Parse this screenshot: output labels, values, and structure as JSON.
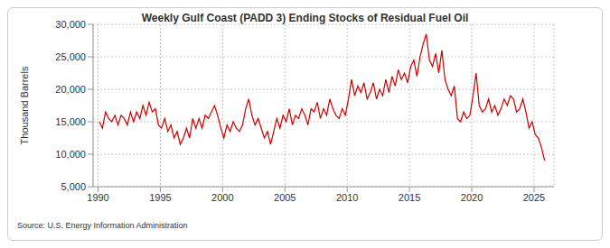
{
  "chart_data": {
    "type": "line",
    "title": "Weekly Gulf Coast (PADD 3) Ending Stocks of Residual Fuel Oil",
    "y_label": "Thousand Barrels",
    "source": "Source: U.S. Energy Information Administration",
    "color": "#cc0000",
    "grid": true,
    "xlim": [
      1989.6,
      2026.6
    ],
    "xticks": [
      1990,
      1995,
      2000,
      2005,
      2010,
      2015,
      2020,
      2025
    ],
    "ylim": [
      5000,
      30000
    ],
    "yticks": [
      {
        "value": 5000,
        "label": "5,000"
      },
      {
        "value": 10000,
        "label": "10,000"
      },
      {
        "value": 15000,
        "label": "15,000"
      },
      {
        "value": 20000,
        "label": "20,000"
      },
      {
        "value": 25000,
        "label": "25,000"
      },
      {
        "value": 30000,
        "label": "30,000"
      }
    ],
    "x": [
      1990.1,
      1990.35,
      1990.6,
      1990.85,
      1991.1,
      1991.35,
      1991.6,
      1991.85,
      1992.1,
      1992.35,
      1992.6,
      1992.85,
      1993.1,
      1993.35,
      1993.6,
      1993.85,
      1994.1,
      1994.35,
      1994.6,
      1994.85,
      1995.1,
      1995.35,
      1995.6,
      1995.85,
      1996.1,
      1996.35,
      1996.6,
      1996.85,
      1997.1,
      1997.35,
      1997.6,
      1997.85,
      1998.1,
      1998.35,
      1998.6,
      1998.85,
      1999.1,
      1999.35,
      1999.6,
      1999.85,
      2000.1,
      2000.35,
      2000.6,
      2000.85,
      2001.1,
      2001.35,
      2001.6,
      2001.85,
      2002.1,
      2002.35,
      2002.6,
      2002.85,
      2003.1,
      2003.35,
      2003.6,
      2003.85,
      2004.1,
      2004.35,
      2004.6,
      2004.85,
      2005.1,
      2005.35,
      2005.6,
      2005.85,
      2006.1,
      2006.35,
      2006.6,
      2006.85,
      2007.1,
      2007.35,
      2007.6,
      2007.85,
      2008.1,
      2008.35,
      2008.6,
      2008.85,
      2009.1,
      2009.35,
      2009.6,
      2009.85,
      2010.1,
      2010.35,
      2010.6,
      2010.85,
      2011.1,
      2011.35,
      2011.6,
      2011.85,
      2012.1,
      2012.35,
      2012.6,
      2012.85,
      2013.1,
      2013.35,
      2013.6,
      2013.85,
      2014.1,
      2014.35,
      2014.6,
      2014.85,
      2015.1,
      2015.35,
      2015.6,
      2015.85,
      2016.1,
      2016.35,
      2016.6,
      2016.85,
      2017.1,
      2017.35,
      2017.6,
      2017.85,
      2018.1,
      2018.35,
      2018.6,
      2018.85,
      2019.1,
      2019.35,
      2019.6,
      2019.85,
      2020.1,
      2020.35,
      2020.6,
      2020.85,
      2021.1,
      2021.35,
      2021.6,
      2021.85,
      2022.1,
      2022.35,
      2022.6,
      2022.85,
      2023.1,
      2023.35,
      2023.6,
      2023.85,
      2024.1,
      2024.35,
      2024.6,
      2024.85,
      2025.1,
      2025.35,
      2025.6,
      2025.85
    ],
    "values": [
      15000,
      14000,
      16500,
      15500,
      15000,
      16000,
      14500,
      16000,
      15500,
      14500,
      16500,
      15000,
      16500,
      15500,
      17500,
      16000,
      18000,
      16500,
      17000,
      14500,
      14000,
      15500,
      13500,
      14500,
      12500,
      13500,
      11500,
      12500,
      14000,
      12500,
      15500,
      14000,
      15500,
      14000,
      16000,
      15500,
      16500,
      17500,
      16000,
      14000,
      12500,
      14500,
      13500,
      15000,
      14000,
      13500,
      14500,
      17000,
      18500,
      16000,
      14500,
      15500,
      14000,
      12500,
      13500,
      11500,
      13500,
      15500,
      14000,
      16000,
      15000,
      17000,
      14500,
      16000,
      15500,
      17000,
      16000,
      14500,
      17000,
      16500,
      18000,
      15500,
      17000,
      16000,
      18500,
      17000,
      16000,
      15500,
      17000,
      16000,
      18500,
      21500,
      19000,
      20500,
      19500,
      21000,
      18500,
      19500,
      21000,
      18500,
      20000,
      19000,
      21500,
      19500,
      22000,
      20500,
      23000,
      21500,
      22500,
      21000,
      23500,
      24500,
      22000,
      25000,
      27000,
      28500,
      24500,
      23500,
      25500,
      22500,
      26000,
      21500,
      20000,
      19000,
      20500,
      15500,
      15000,
      16500,
      15500,
      16000,
      19000,
      22500,
      17500,
      16500,
      17000,
      18500,
      16500,
      17500,
      16000,
      17000,
      18500,
      17500,
      19000,
      18500,
      16500,
      17000,
      18500,
      16500,
      14000,
      15000,
      13000,
      12500,
      11000,
      9000
    ]
  }
}
